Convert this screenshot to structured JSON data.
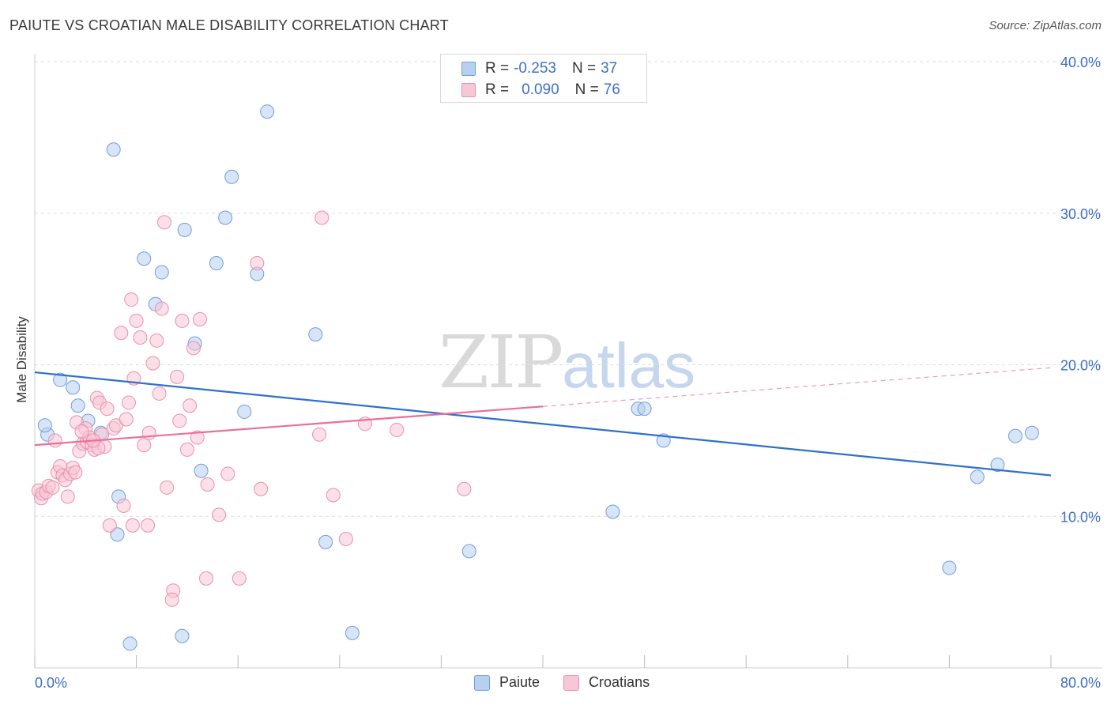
{
  "header": {
    "title": "PAIUTE VS CROATIAN MALE DISABILITY CORRELATION CHART",
    "source": "Source: ZipAtlas.com"
  },
  "watermark": {
    "zip": "ZIP",
    "atlas": "atlas"
  },
  "legend": {
    "r_label": "R =",
    "n_label": "N =",
    "paiute": {
      "r": "-0.253",
      "n": "37"
    },
    "croatians": {
      "r": "0.090",
      "n": "76"
    }
  },
  "colors": {
    "paiute_fill": "#b8d0f0",
    "paiute_stroke": "#6f9ede",
    "paiute_line": "#2f6fcf",
    "croatians_fill": "#f8c7d6",
    "croatians_stroke": "#ea8fae",
    "croatians_line": "#e8709a",
    "tick_label": "#3d6fc7",
    "grid": "#dddddd"
  },
  "chart_data": {
    "type": "scatter",
    "title": "PAIUTE VS CROATIAN MALE DISABILITY CORRELATION CHART",
    "xlabel": "",
    "ylabel": "Male Disability",
    "xlim": [
      0,
      80
    ],
    "ylim": [
      0,
      40
    ],
    "x_tick_labels": [
      "0.0%",
      "80.0%"
    ],
    "y_ticks": [
      10,
      20,
      30,
      40
    ],
    "y_tick_labels": [
      "10.0%",
      "20.0%",
      "30.0%",
      "40.0%"
    ],
    "grid": true,
    "legend_placement": "bottom-center",
    "series": [
      {
        "name": "Paiute",
        "r": -0.253,
        "n": 37,
        "trend": {
          "x": [
            0,
            80
          ],
          "y": [
            19.5,
            12.7
          ],
          "dashed_from": null
        },
        "points": [
          [
            1,
            15.4
          ],
          [
            2,
            19
          ],
          [
            3,
            18.5
          ],
          [
            3.4,
            17.3
          ],
          [
            4.2,
            16.3
          ],
          [
            5.2,
            15.5
          ],
          [
            6.2,
            34.2
          ],
          [
            6.5,
            8.8
          ],
          [
            6.6,
            11.3
          ],
          [
            7.5,
            1.6
          ],
          [
            8.6,
            27
          ],
          [
            9.5,
            24
          ],
          [
            10,
            26.1
          ],
          [
            11.6,
            2.1
          ],
          [
            11.8,
            28.9
          ],
          [
            12.6,
            21.4
          ],
          [
            13.1,
            13
          ],
          [
            14.3,
            26.7
          ],
          [
            15,
            29.7
          ],
          [
            15.5,
            32.4
          ],
          [
            16.5,
            16.9
          ],
          [
            17.5,
            26
          ],
          [
            18.3,
            36.7
          ],
          [
            22.1,
            22
          ],
          [
            22.9,
            8.3
          ],
          [
            25,
            2.3
          ],
          [
            34.2,
            7.7
          ],
          [
            45.5,
            10.3
          ],
          [
            47.5,
            17.1
          ],
          [
            48,
            17.1
          ],
          [
            49.5,
            15
          ],
          [
            72,
            6.6
          ],
          [
            74.2,
            12.6
          ],
          [
            75.8,
            13.4
          ],
          [
            77.2,
            15.3
          ],
          [
            78.5,
            15.5
          ],
          [
            0.8,
            16
          ]
        ]
      },
      {
        "name": "Croatians",
        "r": 0.09,
        "n": 76,
        "trend": {
          "x": [
            0,
            80
          ],
          "y": [
            14.7,
            19.8
          ],
          "dashed_from": 40
        },
        "points": [
          [
            0.3,
            11.7
          ],
          [
            0.5,
            11.2
          ],
          [
            0.6,
            11.5
          ],
          [
            0.9,
            11.6
          ],
          [
            1.1,
            12
          ],
          [
            1.4,
            11.9
          ],
          [
            1.6,
            15
          ],
          [
            1.8,
            12.9
          ],
          [
            2,
            13.3
          ],
          [
            2.2,
            12.7
          ],
          [
            2.4,
            12.4
          ],
          [
            2.6,
            11.3
          ],
          [
            2.8,
            12.8
          ],
          [
            3,
            13.2
          ],
          [
            3.2,
            12.9
          ],
          [
            3.3,
            16.2
          ],
          [
            3.5,
            14.3
          ],
          [
            3.8,
            14.8
          ],
          [
            4,
            15.8
          ],
          [
            4.1,
            14.9
          ],
          [
            4.3,
            15.2
          ],
          [
            4.5,
            14.7
          ],
          [
            4.7,
            14.4
          ],
          [
            4.9,
            17.8
          ],
          [
            5.1,
            17.5
          ],
          [
            5.3,
            15.4
          ],
          [
            5.5,
            14.6
          ],
          [
            5.7,
            17.1
          ],
          [
            5.9,
            9.4
          ],
          [
            6.2,
            15.8
          ],
          [
            6.4,
            16
          ],
          [
            6.8,
            22.1
          ],
          [
            7.0,
            10.7
          ],
          [
            7.2,
            16.4
          ],
          [
            7.4,
            17.5
          ],
          [
            7.6,
            24.3
          ],
          [
            7.8,
            19.1
          ],
          [
            8,
            22.9
          ],
          [
            8.3,
            21.8
          ],
          [
            8.6,
            14.7
          ],
          [
            8.9,
            9.4
          ],
          [
            9.0,
            15.5
          ],
          [
            9.3,
            20.1
          ],
          [
            9.6,
            21.6
          ],
          [
            9.8,
            18.1
          ],
          [
            10.0,
            23.7
          ],
          [
            10.2,
            29.4
          ],
          [
            10.4,
            11.9
          ],
          [
            10.9,
            5.1
          ],
          [
            11.2,
            19.2
          ],
          [
            11.4,
            16.3
          ],
          [
            11.6,
            22.9
          ],
          [
            12.0,
            14.4
          ],
          [
            12.2,
            17.3
          ],
          [
            12.5,
            21.1
          ],
          [
            12.8,
            15.2
          ],
          [
            13.0,
            23.0
          ],
          [
            13.5,
            5.9
          ],
          [
            13.6,
            12.1
          ],
          [
            14.5,
            10.1
          ],
          [
            15.2,
            12.8
          ],
          [
            16.1,
            5.9
          ],
          [
            17.5,
            26.7
          ],
          [
            17.8,
            11.8
          ],
          [
            22.4,
            15.4
          ],
          [
            22.6,
            29.7
          ],
          [
            23.5,
            11.4
          ],
          [
            24.5,
            8.5
          ],
          [
            26,
            16.1
          ],
          [
            28.5,
            15.7
          ],
          [
            33.8,
            11.8
          ],
          [
            7.7,
            9.4
          ],
          [
            5.0,
            14.5
          ],
          [
            4.6,
            15.0
          ],
          [
            10.8,
            4.5
          ],
          [
            3.7,
            15.6
          ]
        ]
      }
    ]
  },
  "bottom_legend": {
    "paiute": "Paiute",
    "croatians": "Croatians"
  }
}
